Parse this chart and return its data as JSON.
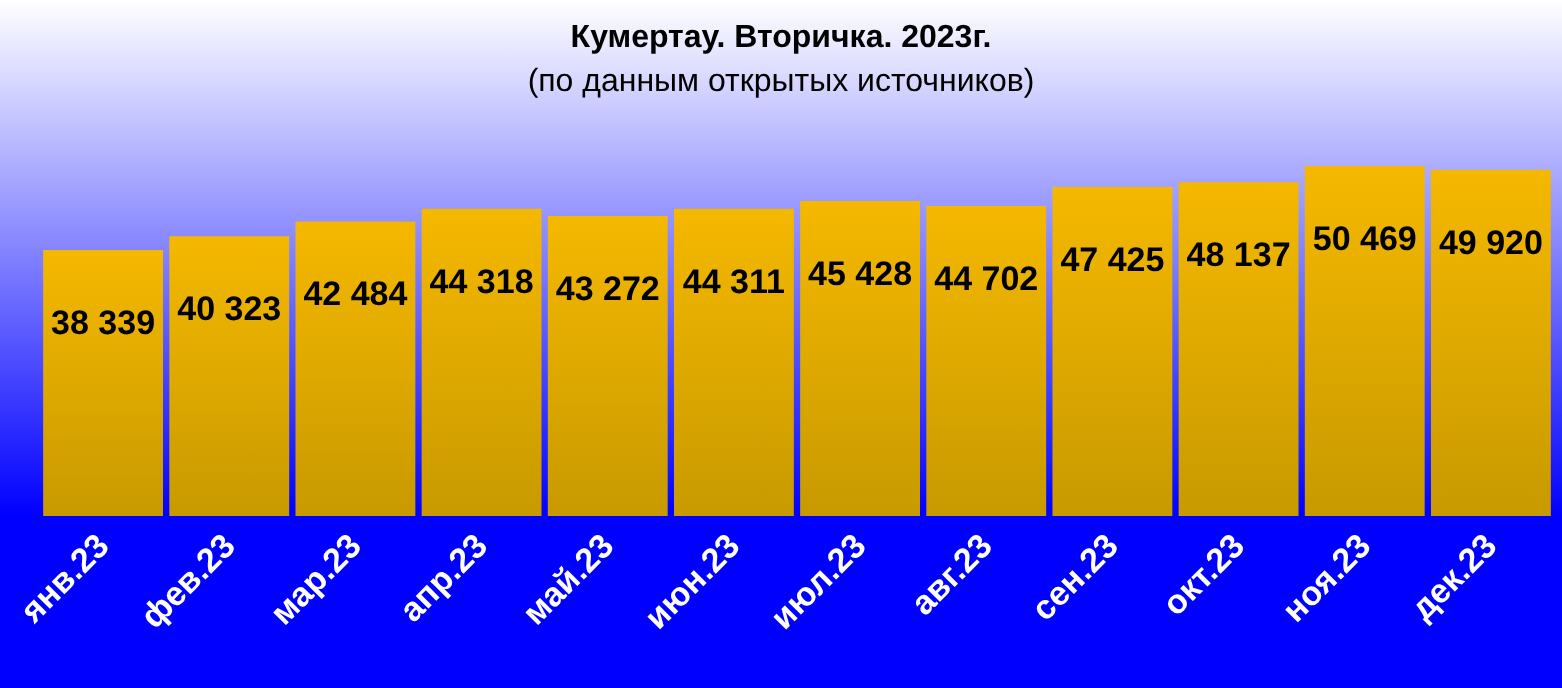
{
  "chart_data": {
    "type": "bar",
    "title": "Кумертау. Вторичка. 2023г.",
    "subtitle": "(по данным открытых источников)",
    "categories": [
      "янв.23",
      "фев.23",
      "мар.23",
      "апр.23",
      "май.23",
      "июн.23",
      "июл.23",
      "авг.23",
      "сен.23",
      "окт.23",
      "ноя.23",
      "дек.23"
    ],
    "values": [
      38339,
      40323,
      42484,
      44318,
      43272,
      44311,
      45428,
      44702,
      47425,
      48137,
      50469,
      49920
    ],
    "value_labels": [
      "38 339",
      "40 323",
      "42 484",
      "44 318",
      "43 272",
      "44 311",
      "45 428",
      "44 702",
      "47 425",
      "48 137",
      "50 469",
      "49 920"
    ],
    "color": "#f5b800"
  }
}
